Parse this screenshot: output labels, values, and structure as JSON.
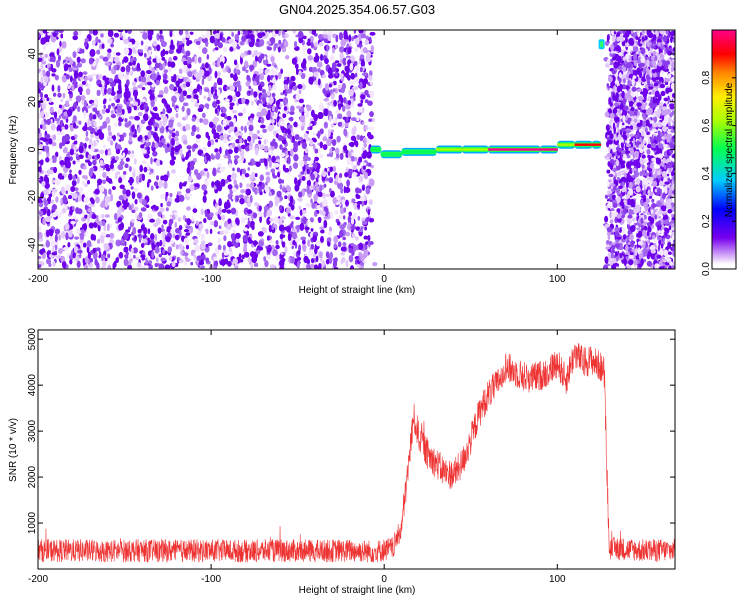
{
  "title": "GN04.2025.354.06.57.G03",
  "chart_data": [
    {
      "type": "heatmap",
      "xlabel": "Height of straight line (km)",
      "ylabel": "Frequency (Hz)",
      "xlim": [
        -200,
        168
      ],
      "ylim": [
        -50,
        50
      ],
      "xticks": [
        -200,
        -100,
        0,
        100
      ],
      "yticks": [
        -40,
        -20,
        0,
        20,
        40
      ],
      "colorbar": {
        "label": "Normalized spectral amplitude",
        "range": [
          0,
          1
        ],
        "ticks": [
          "0.0",
          "0.2",
          "0.4",
          "0.6",
          "0.8"
        ],
        "colormap": [
          "#ffffff",
          "#7700ee",
          "#0000ff",
          "#00ffff",
          "#00ff00",
          "#ffff00",
          "#ff8800",
          "#ff0000",
          "#ff0080"
        ]
      },
      "regions": [
        {
          "label": "noise",
          "x": [
            -200,
            -5
          ],
          "freq": [
            -50,
            50
          ],
          "amplitude": 0.15
        },
        {
          "label": "signal",
          "x": [
            -5,
            127
          ],
          "freq": [
            -1,
            2
          ],
          "amplitude": 0.9
        },
        {
          "label": "noise",
          "x": [
            127,
            168
          ],
          "freq": [
            -50,
            50
          ],
          "amplitude": 0.15
        }
      ],
      "signal_track": {
        "x": [
          -8,
          -2,
          10,
          30,
          45,
          60,
          90,
          100,
          110,
          120,
          125
        ],
        "freq": [
          0,
          -2,
          -1,
          0,
          0,
          0,
          0,
          2,
          2,
          2,
          2
        ],
        "amplitude": [
          0.4,
          0.45,
          0.45,
          0.55,
          0.6,
          1.0,
          0.95,
          0.6,
          0.9,
          0.85,
          0.5
        ]
      }
    },
    {
      "type": "line",
      "xlabel": "Height of straight line (km)",
      "ylabel": "SNR (10 * v/v)",
      "xlim": [
        -200,
        168
      ],
      "ylim": [
        0,
        5200
      ],
      "xticks": [
        -200,
        -100,
        0,
        100
      ],
      "yticks": [
        1000,
        2000,
        3000,
        4000,
        5000
      ],
      "series": [
        {
          "color": "#ee3333",
          "x": [
            -200,
            -180,
            -160,
            -140,
            -120,
            -100,
            -80,
            -60,
            -40,
            -20,
            -5,
            5,
            10,
            13,
            17,
            20,
            25,
            30,
            35,
            40,
            45,
            50,
            55,
            60,
            65,
            70,
            75,
            80,
            85,
            90,
            95,
            100,
            105,
            110,
            115,
            120,
            125,
            127,
            130,
            140,
            150,
            168
          ],
          "y": [
            400,
            400,
            390,
            400,
            390,
            400,
            390,
            400,
            390,
            400,
            380,
            450,
            900,
            1900,
            3300,
            2900,
            2500,
            2300,
            2100,
            2050,
            2300,
            2800,
            3400,
            3800,
            4000,
            4400,
            4300,
            4200,
            4150,
            4200,
            4300,
            4500,
            4100,
            4700,
            4500,
            4550,
            4400,
            4300,
            450,
            430,
            400,
            410
          ],
          "noise": 280
        }
      ]
    }
  ]
}
